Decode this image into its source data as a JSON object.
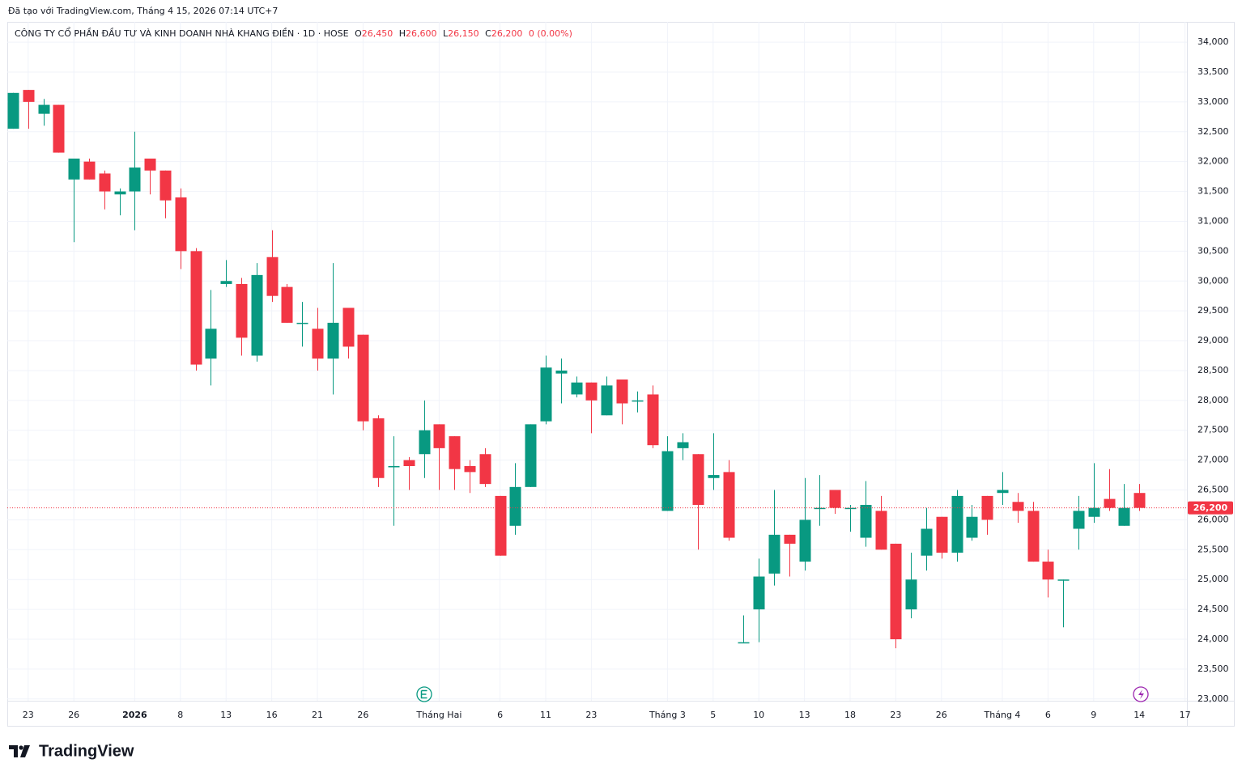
{
  "chart_data": {
    "type": "candlestick",
    "watermark": "Đã tạo với TradingView.com, Tháng 4 15, 2026 07:14 UTC+7",
    "title": "CÔNG TY CỔ PHẦN ĐẦU TƯ VÀ KINH DOANH NHÀ KHANG ĐIỀN · 1D · HOSE",
    "legend": {
      "o_label": "O",
      "o": "26,450",
      "h_label": "H",
      "h": "26,600",
      "l_label": "L",
      "l": "26,150",
      "c_label": "C",
      "c": "26,200",
      "change": "0 (0.00%)"
    },
    "brand": "TradingView",
    "up_color": "#089981",
    "down_color": "#f23645",
    "categories": [
      null,
      "23",
      null,
      null,
      "26",
      null,
      null,
      null,
      "2026",
      null,
      null,
      "8",
      null,
      null,
      "13",
      null,
      null,
      "16",
      null,
      null,
      "21",
      null,
      null,
      "26",
      null,
      null,
      null,
      null,
      "Tháng Hai",
      null,
      null,
      null,
      "6",
      null,
      null,
      "11",
      null,
      null,
      "23",
      null,
      null,
      null,
      null,
      "Tháng 3",
      null,
      null,
      "5",
      null,
      null,
      "10",
      null,
      null,
      "13",
      null,
      null,
      "18",
      null,
      null,
      "23",
      null,
      null,
      "26",
      null,
      null,
      null,
      "Tháng 4",
      null,
      null,
      "6",
      null,
      null,
      "9",
      null,
      null,
      "14",
      null,
      null,
      "17"
    ],
    "open": [
      32550,
      33200,
      32800,
      32950,
      31700,
      32000,
      31800,
      31450,
      31500,
      32050,
      31850,
      31400,
      30500,
      28700,
      29950,
      29950,
      28750,
      30400,
      29900,
      29300,
      29200,
      28700,
      29550,
      29100,
      27700,
      26900,
      27000,
      27100,
      27600,
      27400,
      26900,
      27100,
      26400,
      25900,
      26550,
      27650,
      28450,
      28100,
      28300,
      27750,
      28350,
      28000,
      28100,
      26150,
      27200,
      27100,
      26700,
      26800,
      23950,
      24500,
      25100,
      25750,
      25300,
      26200,
      26500,
      26200,
      25700,
      26150,
      25600,
      24500,
      25400,
      26050,
      25450,
      25700,
      26400,
      26450,
      26300,
      26150,
      25300,
      25000,
      25850,
      26050,
      26350,
      25900,
      26450,
      null,
      null,
      null
    ],
    "high": [
      33150,
      33200,
      33050,
      32950,
      32050,
      32050,
      31850,
      31550,
      32500,
      32050,
      31850,
      31550,
      30550,
      29850,
      30350,
      30050,
      30300,
      30850,
      29950,
      29650,
      29550,
      30300,
      29550,
      29100,
      27750,
      27400,
      27050,
      28000,
      27600,
      27400,
      27000,
      27200,
      26400,
      26950,
      27600,
      28750,
      28700,
      28400,
      28300,
      28400,
      28350,
      28150,
      28250,
      27400,
      27450,
      27100,
      27450,
      27000,
      24400,
      25350,
      26500,
      25750,
      26700,
      26750,
      26500,
      26250,
      26650,
      26400,
      25600,
      25450,
      26200,
      26050,
      26500,
      26250,
      26400,
      26800,
      26450,
      26300,
      25500,
      25000,
      26400,
      26950,
      26850,
      26600,
      26600,
      null,
      null,
      null
    ],
    "low": [
      32550,
      32550,
      32600,
      32150,
      30650,
      31700,
      31200,
      31100,
      30850,
      31450,
      31050,
      30200,
      28500,
      28250,
      29900,
      28750,
      28650,
      29650,
      29300,
      28900,
      28500,
      28100,
      28700,
      27500,
      26550,
      25900,
      26500,
      26700,
      26500,
      26500,
      26450,
      26550,
      25400,
      25750,
      26550,
      27600,
      27950,
      28050,
      27450,
      27750,
      27600,
      27800,
      27200,
      26150,
      27000,
      25500,
      26500,
      25650,
      23950,
      23950,
      24900,
      25050,
      25150,
      25900,
      26100,
      25800,
      25550,
      25500,
      23850,
      24350,
      25150,
      25350,
      25300,
      25650,
      25750,
      26250,
      25950,
      25300,
      24700,
      24200,
      25500,
      25950,
      26150,
      25900,
      26150,
      null,
      null,
      null
    ],
    "close": [
      33150,
      33000,
      32950,
      32150,
      32050,
      31700,
      31500,
      31500,
      31900,
      31850,
      31350,
      30500,
      28600,
      29200,
      30000,
      29050,
      30100,
      29750,
      29300,
      29300,
      28700,
      29300,
      28900,
      27650,
      26700,
      26900,
      26900,
      27500,
      27200,
      26850,
      26800,
      26600,
      25400,
      26550,
      27600,
      28550,
      28500,
      28300,
      28000,
      28250,
      27950,
      28000,
      27250,
      27150,
      27300,
      26250,
      26750,
      25700,
      23950,
      25050,
      25750,
      25600,
      26000,
      26200,
      26200,
      26200,
      26250,
      25500,
      24000,
      25000,
      25850,
      25450,
      26400,
      26050,
      26000,
      26500,
      26150,
      25300,
      25000,
      25000,
      26150,
      26200,
      26200,
      26200,
      26200,
      null,
      null,
      null
    ],
    "last_price": {
      "value": 26200,
      "label": "26,200"
    },
    "ylim": [
      22970,
      34340
    ],
    "yticks": [
      {
        "value": 23000,
        "label": "23,000"
      },
      {
        "value": 23500,
        "label": "23,500"
      },
      {
        "value": 24000,
        "label": "24,000"
      },
      {
        "value": 24500,
        "label": "24,500"
      },
      {
        "value": 25000,
        "label": "25,000"
      },
      {
        "value": 25500,
        "label": "25,500"
      },
      {
        "value": 26000,
        "label": "26,000"
      },
      {
        "value": 26500,
        "label": "26,500"
      },
      {
        "value": 27000,
        "label": "27,000"
      },
      {
        "value": 27500,
        "label": "27,500"
      },
      {
        "value": 28000,
        "label": "28,000"
      },
      {
        "value": 28500,
        "label": "28,500"
      },
      {
        "value": 29000,
        "label": "29,000"
      },
      {
        "value": 29500,
        "label": "29,500"
      },
      {
        "value": 30000,
        "label": "30,000"
      },
      {
        "value": 30500,
        "label": "30,500"
      },
      {
        "value": 31000,
        "label": "31,000"
      },
      {
        "value": 31500,
        "label": "31,500"
      },
      {
        "value": 32000,
        "label": "32,000"
      },
      {
        "value": 32500,
        "label": "32,500"
      },
      {
        "value": 33000,
        "label": "33,000"
      },
      {
        "value": 33500,
        "label": "33,500"
      },
      {
        "value": 34000,
        "label": "34,000"
      }
    ],
    "grid": true
  }
}
